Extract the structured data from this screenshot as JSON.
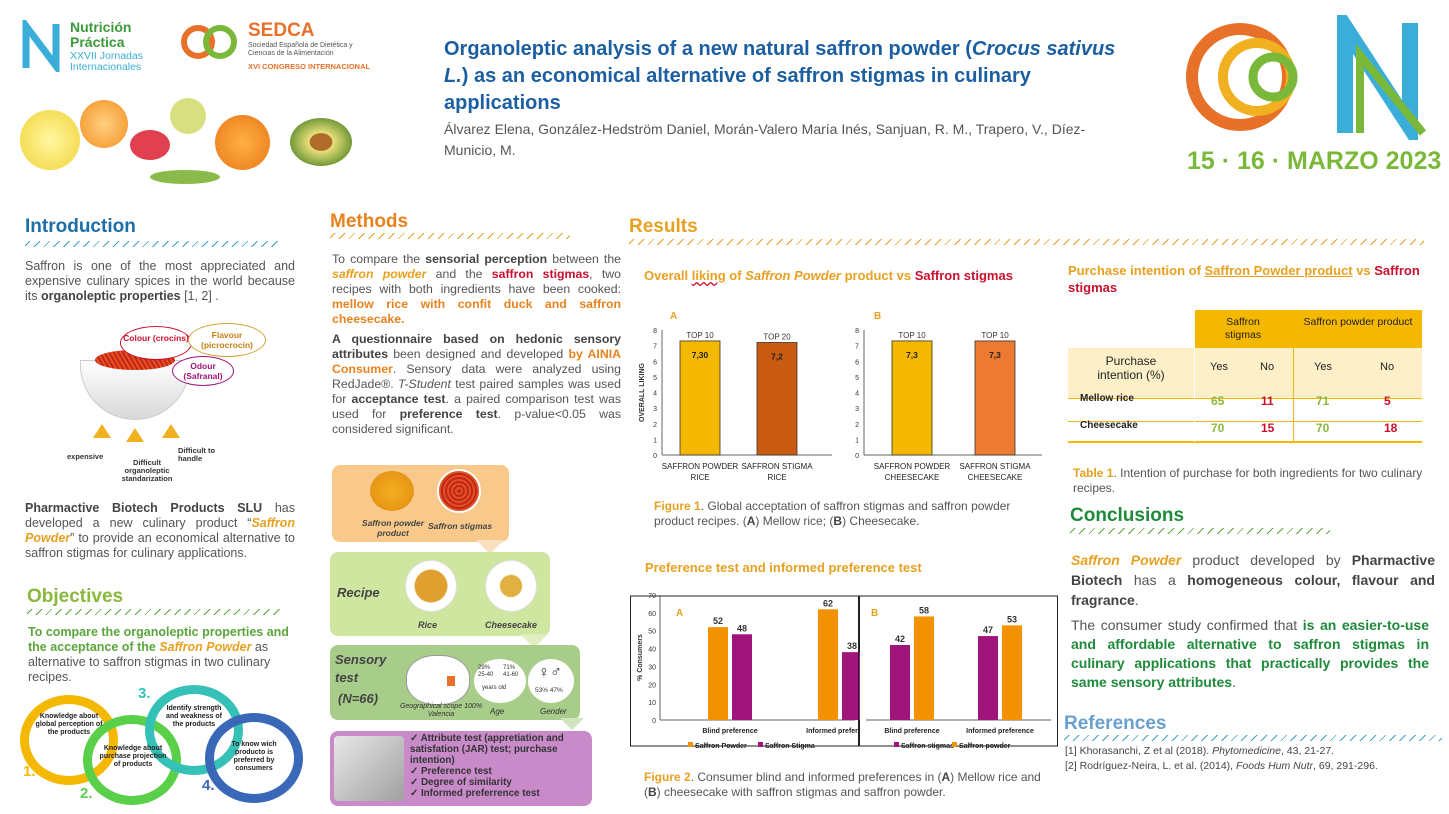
{
  "header": {
    "logo1_name": "Nutrición Práctica",
    "logo1_sub": "XXVII Jornadas Internacionales",
    "logo2_name": "SEDCA",
    "logo2_sub1": "Sociedad Española de Dietética y Ciencias de la Alimentación",
    "logo2_sub2": "XVI CONGRESO INTERNACIONAL",
    "title_part1": "Organoleptic analysis of a new natural saffron powder (",
    "title_italic": "Crocus sativus L.",
    "title_part2": ") as an economical alternative of saffron stigmas in culinary applications",
    "authors": "Álvarez Elena, González-Hedström Daniel, Morán-Valero María Inés, Sanjuan, R. M., Trapero, V., Díez-Municio, M.",
    "event_date": "15 · 16 · MARZO 2023"
  },
  "introduction": {
    "title": "Introduction",
    "p1_a": "Saffron is one of the most appreciated and expensive culinary spices in the world because its ",
    "p1_b": "organoleptic properties",
    "p1_c": " [1, 2] .",
    "bubble_colour": "Colour (crocins)",
    "bubble_flavour": "Flavour (picrocrocin)",
    "bubble_odour": "Odour (Safranal)",
    "arrow1": "expensive",
    "arrow2": "Difficult organoleptic standarization",
    "arrow3": "Difficult to handle",
    "p2_a": "Pharmactive Biotech Products SLU",
    "p2_b": " has developed a new culinary product “",
    "p2_c": "Saffron Powder",
    "p2_d": "” to provide an economical alternative to saffron stigmas for culinary applications."
  },
  "objectives": {
    "title": "Objectives",
    "text_a": "To compare the organoleptic properties and the acceptance of the ",
    "text_b": "Saffron Powder",
    "text_c": " as alternative to saffron stigmas in two culinary recipes.",
    "steps": [
      {
        "num": "1.",
        "label": "Knowledge about global perception of the products"
      },
      {
        "num": "2.",
        "label": "Knowledge about purchase projection of products"
      },
      {
        "num": "3.",
        "label": "Identify strength and weakness of the products"
      },
      {
        "num": "4.",
        "label": "To know wich producto is preferred by consumers"
      }
    ]
  },
  "methods": {
    "title": "Methods",
    "p1_a": "To compare the ",
    "p1_b": "sensorial perception",
    "p1_c": " between the ",
    "p1_d": "saffron powder",
    "p1_e": " and the ",
    "p1_f": "saffron stigmas",
    "p1_g": ", two recipes with both ingredients have been cooked: ",
    "p1_h": "mellow rice with confit duck and saffron cheesecake.",
    "p2_a": "A questionnaire based on hedonic sensory attributes",
    "p2_b": " been designed and developed ",
    "p2_c": "by AINIA Consumer",
    "p2_d": ". Sensory data were analyzed using RedJade®. ",
    "p2_e": "T-Student",
    "p2_f": " test paired samples was used for ",
    "p2_g": "acceptance test",
    "p2_h": ". a paired comparison test was used for ",
    "p2_i": "preference test",
    "p2_j": ". p-value<0.05 was considered significant.",
    "flow_powder": "Saffron powder product",
    "flow_stigmas": "Saffron stigmas",
    "flow_recipe": "Recipe",
    "flow_rice": "Rice",
    "flow_cheesecake": "Cheesecake",
    "flow_sensory": "Sensory test",
    "flow_n": "(N=66)",
    "flow_geo": "Geographical scope 100% Valencia",
    "flow_age_a": "29% 25-40",
    "flow_age_b": "71% 41-60",
    "flow_age_years": "years old",
    "flow_age": "Age",
    "flow_gender_pct": "53% 47%",
    "flow_gender": "Gender",
    "tests": [
      "Attribute test (appretiation and satisfation (JAR) test; purchase intention)",
      "Preference test",
      "Degree of similarity",
      "Informed preferrence test"
    ]
  },
  "results": {
    "title": "Results",
    "fig1_title_a": "Overall ",
    "fig1_title_b": "liking",
    "fig1_title_c": " of ",
    "fig1_title_d": "Saffron Powder",
    "fig1_title_e": " product vs ",
    "fig1_title_f": "Saffron stigmas",
    "fig1_caption_a": "Figure 1",
    "fig1_caption_b": ". Global acceptation of saffron stigmas and saffron powder product recipes. (",
    "fig1_caption_c": "A",
    "fig1_caption_d": ") Mellow rice; (",
    "fig1_caption_e": "B",
    "fig1_caption_f": ") Cheesecake.",
    "fig2_title": "Preference test and informed preference test",
    "fig2_caption_a": "Figure 2",
    "fig2_caption_b": ". Consumer blind and informed preferences in (",
    "fig2_caption_c": "A",
    "fig2_caption_d": ") Mellow rice and (",
    "fig2_caption_e": "B",
    "fig2_caption_f": ") cheesecake with saffron stigmas and saffron powder."
  },
  "purchase": {
    "title_a": "Purchase intention of ",
    "title_b": "Saffron Powder product",
    "title_c": " vs ",
    "title_d": "Saffron stigmas",
    "col_stigmas": "Saffron stigmas",
    "col_powder": "Saffron powder product",
    "row_header": "Purchase intention (%)",
    "yes": "Yes",
    "no": "No",
    "rows": [
      {
        "name": "Mellow rice",
        "s_yes": "65",
        "s_no": "11",
        "p_yes": "71",
        "p_no": "5"
      },
      {
        "name": "Cheesecake",
        "s_yes": "70",
        "s_no": "15",
        "p_yes": "70",
        "p_no": "18"
      }
    ],
    "caption_a": "Table 1",
    "caption_b": ". Intention of purchase for both ingredients for two culinary recipes."
  },
  "conclusions": {
    "title": "Conclusions",
    "p1_a": "Saffron Powder",
    "p1_b": " product developed by ",
    "p1_c": "Pharmactive Biotech",
    "p1_d": " has a ",
    "p1_e": "homogeneous colour, flavour and fragrance",
    "p1_f": ".",
    "p2_a": "The consumer study confirmed that ",
    "p2_b": "is an easier-to-use and affordable alternative to saffron stigmas in culinary applications that practically provides the same sensory attributes",
    "p2_c": "."
  },
  "references": {
    "title": "References",
    "r1_a": "[1] Khorasanchi, Z et al (2018). ",
    "r1_b": "Phytomedicine",
    "r1_c": ", 43, 21-27.",
    "r2_a": "[2] Rodríguez-Neira, L. et al. (2014), ",
    "r2_b": "Foods Hum Nutr",
    "r2_c": ", 69, 291-296."
  },
  "chart_data": [
    {
      "type": "bar",
      "panel": "A",
      "ylabel": "OVERALL LIKING",
      "ylim": [
        0,
        8
      ],
      "categories": [
        "SAFFRON POWDER RICE",
        "SAFFRON STIGMA RICE"
      ],
      "values": [
        7.3,
        7.2
      ],
      "value_labels": [
        "7,30",
        "7,2"
      ],
      "top_labels": [
        "TOP 10",
        "TOP 20"
      ],
      "colors": [
        "#f5b800",
        "#c85a12"
      ]
    },
    {
      "type": "bar",
      "panel": "B",
      "ylim": [
        0,
        8
      ],
      "categories": [
        "SAFFRON POWDER CHEESECAKE",
        "SAFFRON STIGMA CHEESECAKE"
      ],
      "values": [
        7.3,
        7.3
      ],
      "value_labels": [
        "7,3",
        "7,3"
      ],
      "top_labels": [
        "TOP 10",
        "TOP 10"
      ],
      "colors": [
        "#f5b800",
        "#ec7a30"
      ]
    },
    {
      "type": "bar",
      "panel": "A",
      "ylabel": "% Consumers",
      "ylim": [
        0,
        70
      ],
      "categories": [
        "Blind preference",
        "Informed preference"
      ],
      "series": [
        {
          "name": "Saffron Powder",
          "values": [
            52,
            62
          ],
          "color": "#f39200"
        },
        {
          "name": "Saffron Stigma",
          "values": [
            48,
            38
          ],
          "color": "#a0157a"
        }
      ]
    },
    {
      "type": "bar",
      "panel": "B",
      "ylim": [
        0,
        70
      ],
      "categories": [
        "Blind preference",
        "Informed preference"
      ],
      "series": [
        {
          "name": "Saffron stigmas",
          "values": [
            42,
            47
          ],
          "color": "#a0157a"
        },
        {
          "name": "Saffron powder",
          "values": [
            58,
            53
          ],
          "color": "#f39200"
        }
      ]
    }
  ]
}
